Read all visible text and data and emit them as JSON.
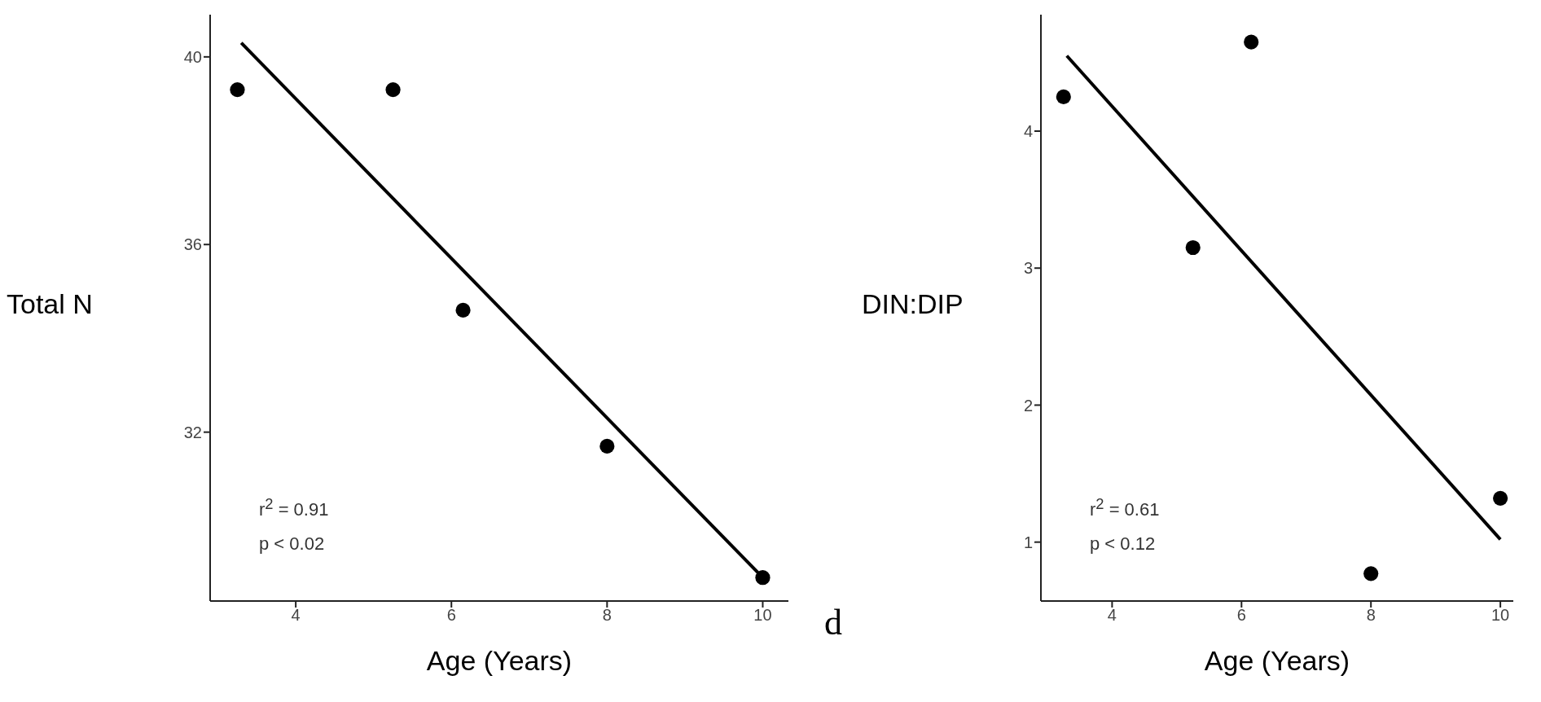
{
  "chart_data": [
    {
      "type": "scatter",
      "xlabel": "Age (Years)",
      "ylabel": "Total N",
      "xlim": [
        2.9,
        10.33
      ],
      "xticks": [
        4,
        6,
        8,
        10
      ],
      "ylim": [
        28.4,
        40.9
      ],
      "yticks": [
        32,
        36,
        40
      ],
      "grid": false,
      "annotations": [
        "r$^{2}$ = 0.91",
        "p < 0.02"
      ],
      "series": [
        {
          "type": "scatter",
          "color": "#000000",
          "marker": "circle",
          "x": [
            3.25,
            5.25,
            6.15,
            8,
            10
          ],
          "values": [
            39.3,
            39.3,
            34.6,
            31.7,
            28.9
          ]
        },
        {
          "type": "line",
          "color": "#000000",
          "x": [
            3.3,
            10
          ],
          "values": [
            40.3,
            28.9
          ],
          "line_style": "solid"
        }
      ]
    },
    {
      "type": "other",
      "annotations": [
        "d"
      ]
    },
    {
      "type": "scatter",
      "xlabel": "Age (Years)",
      "ylabel": "DIN:DIP",
      "xlim": [
        2.9,
        10.2
      ],
      "xticks": [
        4,
        6,
        8,
        10
      ],
      "ylim": [
        0.57,
        4.85
      ],
      "yticks": [
        1,
        2,
        3,
        4
      ],
      "grid": false,
      "annotations": [
        "r$^{2}$ = 0.61",
        "p < 0.12"
      ],
      "series": [
        {
          "type": "scatter",
          "color": "#000000",
          "marker": "circle",
          "x": [
            3.25,
            5.25,
            6.15,
            8,
            10
          ],
          "values": [
            4.25,
            3.15,
            4.65,
            0.77,
            1.32
          ]
        },
        {
          "type": "line",
          "color": "#000000",
          "x": [
            3.3,
            10
          ],
          "values": [
            4.55,
            1.02
          ],
          "line_style": "solid"
        }
      ]
    }
  ]
}
